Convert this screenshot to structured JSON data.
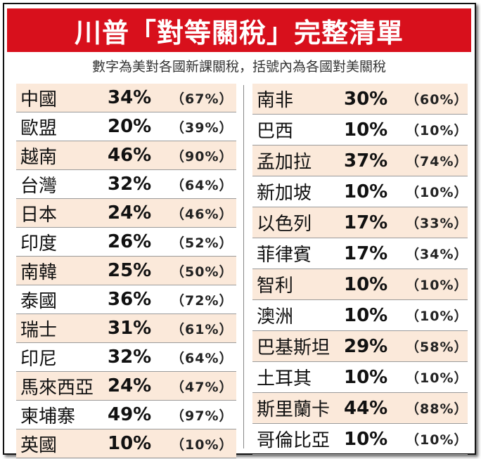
{
  "title": "川普「對等關稅」完整清單",
  "subtitle": "數字為美對各國新課關稅，括號內為各國對美關稅",
  "left_rows": [
    {
      "country": "中國",
      "rate": "34%",
      "reciprocal": "（67%）"
    },
    {
      "country": "歐盟",
      "rate": "20%",
      "reciprocal": "（39%）"
    },
    {
      "country": "越南",
      "rate": "46%",
      "reciprocal": "（90%）"
    },
    {
      "country": "台灣",
      "rate": "32%",
      "reciprocal": "（64%）"
    },
    {
      "country": "日本",
      "rate": "24%",
      "reciprocal": "（46%）"
    },
    {
      "country": "印度",
      "rate": "26%",
      "reciprocal": "（52%）"
    },
    {
      "country": "南韓",
      "rate": "25%",
      "reciprocal": "（50%）"
    },
    {
      "country": "泰國",
      "rate": "36%",
      "reciprocal": "（72%）"
    },
    {
      "country": "瑞士",
      "rate": "31%",
      "reciprocal": "（61%）"
    },
    {
      "country": "印尼",
      "rate": "32%",
      "reciprocal": "（64%）"
    },
    {
      "country": "馬來西亞",
      "rate": "24%",
      "reciprocal": "（47%）"
    },
    {
      "country": "柬埔寨",
      "rate": "49%",
      "reciprocal": "（97%）"
    },
    {
      "country": "英國",
      "rate": "10%",
      "reciprocal": "（10%）"
    }
  ],
  "right_rows": [
    {
      "country": "南非",
      "rate": "30%",
      "reciprocal": "（60%）"
    },
    {
      "country": "巴西",
      "rate": "10%",
      "reciprocal": "（10%）"
    },
    {
      "country": "孟加拉",
      "rate": "37%",
      "reciprocal": "（74%）"
    },
    {
      "country": "新加坡",
      "rate": "10%",
      "reciprocal": "（10%）"
    },
    {
      "country": "以色列",
      "rate": "17%",
      "reciprocal": "（33%）"
    },
    {
      "country": "菲律賓",
      "rate": "17%",
      "reciprocal": "（34%）"
    },
    {
      "country": "智利",
      "rate": "10%",
      "reciprocal": "（10%）"
    },
    {
      "country": "澳洲",
      "rate": "10%",
      "reciprocal": "（10%）"
    },
    {
      "country": "巴基斯坦",
      "rate": "29%",
      "reciprocal": "（58%）"
    },
    {
      "country": "土耳其",
      "rate": "10%",
      "reciprocal": "（10%）"
    },
    {
      "country": "斯里蘭卡",
      "rate": "44%",
      "reciprocal": "（88%）"
    },
    {
      "country": "哥倫比亞",
      "rate": "10%",
      "reciprocal": "（10%）"
    }
  ],
  "colors": {
    "title_bg": "#d8101c",
    "row_shade": "#fbe9da"
  }
}
